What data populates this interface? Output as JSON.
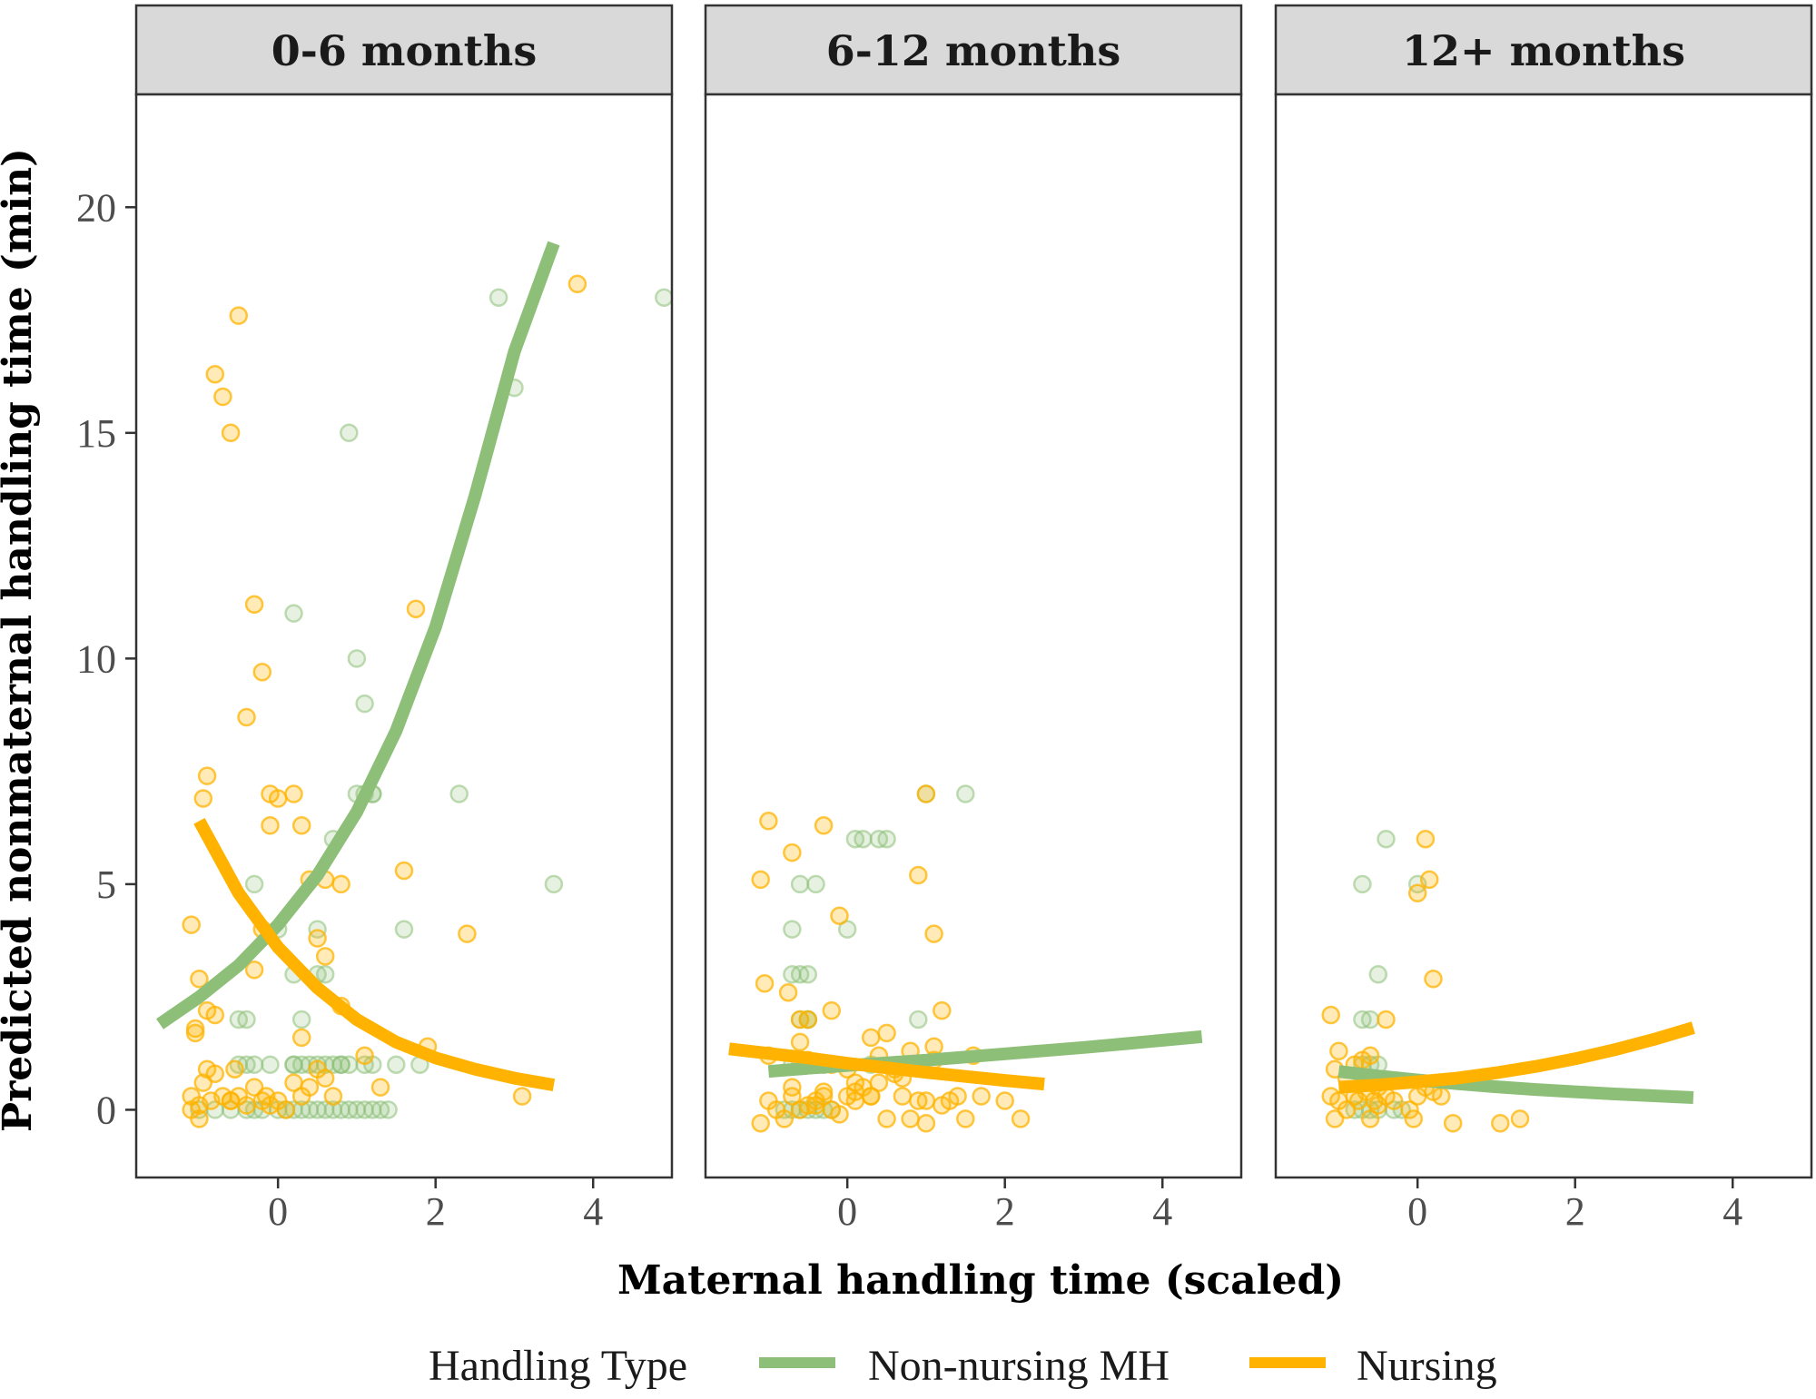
{
  "chart_data": {
    "type": "scatter",
    "title": "",
    "xlabel": "Maternal handling time (scaled)",
    "ylabel": "Predicted nonmaternal handling time (min)",
    "xlim": [
      -1.8,
      5.0
    ],
    "ylim": [
      -1.5,
      22.5
    ],
    "x_ticks": [
      0,
      2,
      4
    ],
    "y_ticks": [
      0,
      5,
      10,
      15,
      20
    ],
    "grid": false,
    "legend": {
      "title": "Handling Type",
      "placement": "bottom",
      "entries": [
        {
          "name": "Non-nursing MH",
          "color": "#8dbf78"
        },
        {
          "name": "Nursing",
          "color": "#ffb300"
        }
      ]
    },
    "colors": {
      "nonnursing": "#8dbf78",
      "nursing": "#ffb300"
    },
    "panels": [
      {
        "label": "0-6 months",
        "series": [
          {
            "name": "Non-nursing MH",
            "line": {
              "x": [
                -1.5,
                -1.0,
                -0.5,
                0.0,
                0.5,
                1.0,
                1.5,
                2.0,
                2.5,
                3.0,
                3.5
              ],
              "y": [
                1.9,
                2.5,
                3.2,
                4.1,
                5.2,
                6.6,
                8.4,
                10.7,
                13.6,
                16.8,
                19.2
              ]
            },
            "points": {
              "x": [
                -1.0,
                -0.8,
                -0.6,
                -0.4,
                -0.3,
                -0.2,
                0.0,
                0.1,
                0.2,
                0.3,
                0.4,
                0.5,
                0.6,
                0.7,
                0.8,
                0.9,
                1.0,
                1.1,
                1.2,
                1.3,
                1.4,
                -0.5,
                -0.4,
                -0.3,
                0.2,
                0.3,
                0.5,
                0.7,
                0.8,
                0.9,
                1.1,
                1.2,
                1.5,
                1.8,
                2.3,
                3.5,
                0.2,
                0.3,
                0.5,
                0.6,
                0.7,
                1.0,
                1.1,
                1.2,
                1.6,
                2.8,
                3.0,
                4.9,
                0.0,
                0.2,
                0.5,
                0.9,
                -0.5,
                -0.4,
                -0.1,
                0.2,
                0.4,
                0.6,
                0.8,
                1.0,
                1.1,
                1.2,
                -0.3
              ],
              "y": [
                0,
                0,
                0,
                0,
                0,
                0,
                0,
                0,
                0,
                0,
                0,
                0,
                0,
                0,
                0,
                0,
                0,
                0,
                0,
                0,
                0,
                1,
                1,
                1,
                1,
                1,
                1,
                1,
                1,
                1,
                1,
                1,
                1,
                1,
                7,
                5,
                3,
                2,
                3,
                3,
                6,
                7,
                7,
                7,
                4,
                18,
                16,
                18,
                4,
                11,
                4,
                15,
                2,
                2,
                1,
                1,
                1,
                1,
                1,
                10,
                9,
                7,
                5
              ]
            }
          },
          {
            "name": "Nursing",
            "line": {
              "x": [
                -1.0,
                -0.5,
                0.0,
                0.5,
                1.0,
                1.5,
                2.0,
                2.5,
                3.0,
                3.5
              ],
              "y": [
                6.4,
                4.8,
                3.6,
                2.7,
                2.0,
                1.5,
                1.15,
                0.9,
                0.7,
                0.55
              ]
            },
            "points": {
              "x": [
                -1.1,
                -1.0,
                -0.95,
                -0.9,
                -0.85,
                -0.8,
                -0.7,
                -0.6,
                -0.5,
                -0.4,
                -0.3,
                -0.2,
                -0.15,
                -0.1,
                0.0,
                0.1,
                0.2,
                0.3,
                0.4,
                0.5,
                0.6,
                0.7,
                -1.1,
                -1.05,
                -1.0,
                -0.95,
                -0.9,
                -0.8,
                -0.7,
                -0.6,
                -0.5,
                -0.4,
                -0.3,
                -0.2,
                -0.1,
                0.0,
                0.2,
                0.3,
                0.4,
                0.5,
                0.6,
                0.8,
                1.1,
                1.3,
                1.6,
                1.75,
                1.9,
                2.4,
                3.1,
                3.8,
                -1.0,
                -0.9,
                -0.8,
                -1.1,
                -0.6,
                -1.05,
                -0.55,
                -0.2,
                -0.3,
                -0.1,
                0.3,
                0.6,
                0.8
              ],
              "y": [
                0.3,
                0.1,
                0.6,
                0.9,
                0.2,
                0.8,
                0.3,
                0.2,
                0.3,
                0.1,
                0.5,
                0.2,
                0.3,
                0.1,
                0.2,
                0.0,
                0.6,
                0.3,
                0.5,
                0.9,
                0.7,
                0.3,
                4.1,
                1.7,
                2.9,
                6.9,
                7.4,
                16.3,
                15.8,
                15.0,
                17.6,
                8.7,
                11.2,
                9.7,
                7.0,
                6.9,
                7.0,
                6.3,
                5.1,
                3.8,
                3.4,
                2.3,
                1.2,
                0.5,
                5.3,
                11.1,
                1.4,
                3.9,
                0.3,
                18.3,
                -0.2,
                2.2,
                2.1,
                0.0,
                0.2,
                1.8,
                0.9,
                4.0,
                3.1,
                6.3,
                1.6,
                5.1,
                5.0
              ]
            }
          }
        ]
      },
      {
        "label": "6-12 months",
        "series": [
          {
            "name": "Non-nursing MH",
            "line": {
              "x": [
                -1.0,
                -0.5,
                0.0,
                0.5,
                1.0,
                1.5,
                2.0,
                2.5,
                3.0,
                3.5,
                4.0,
                4.5
              ],
              "y": [
                0.85,
                0.92,
                0.98,
                1.04,
                1.1,
                1.17,
                1.24,
                1.31,
                1.38,
                1.46,
                1.54,
                1.62
              ]
            },
            "points": {
              "x": [
                -0.8,
                -0.7,
                -0.6,
                -0.5,
                -0.4,
                -0.3,
                -0.2,
                -0.7,
                -0.6,
                -0.5,
                -0.4,
                -0.3,
                -0.6,
                -0.5,
                -0.7,
                -0.6,
                -0.5,
                -0.7,
                -0.6,
                -0.4,
                0.1,
                0.2,
                0.4,
                0.5,
                1.0,
                1.5,
                -0.5,
                0.0,
                0.3,
                0.9
              ],
              "y": [
                0,
                0,
                0,
                0,
                0,
                0,
                0,
                1,
                1,
                1,
                1,
                1,
                2,
                2,
                3,
                3,
                3,
                4,
                5,
                5,
                6,
                6,
                6,
                6,
                7,
                7,
                2,
                4,
                1,
                2
              ]
            }
          },
          {
            "name": "Nursing",
            "line": {
              "x": [
                -1.5,
                -1.0,
                -0.5,
                0.0,
                0.5,
                1.0,
                1.5,
                2.0,
                2.5
              ],
              "y": [
                1.35,
                1.25,
                1.15,
                1.03,
                0.93,
                0.83,
                0.74,
                0.65,
                0.57
              ]
            },
            "points": {
              "x": [
                -1.1,
                -1.0,
                -0.9,
                -0.8,
                -0.7,
                -0.6,
                -0.5,
                -0.4,
                -0.3,
                -0.2,
                -0.1,
                0.0,
                0.1,
                0.2,
                0.3,
                0.4,
                0.5,
                0.6,
                0.7,
                0.8,
                0.9,
                1.0,
                1.1,
                1.2,
                1.3,
                1.4,
                1.5,
                1.6,
                1.7,
                2.0,
                2.2,
                -1.1,
                -1.0,
                -0.7,
                -0.6,
                -0.5,
                -0.3,
                -0.2,
                -0.1,
                0.0,
                0.1,
                0.3,
                0.4,
                0.5,
                0.6,
                0.7,
                0.8,
                0.9,
                1.0,
                1.1,
                1.2,
                -1.05,
                -0.75,
                -0.4,
                -0.2,
                0.1,
                0.3,
                1.0,
                1.1,
                -1.0,
                -0.7,
                -0.6,
                -0.5,
                -0.3
              ],
              "y": [
                -0.3,
                0.2,
                0.0,
                -0.2,
                0.3,
                0.0,
                0.1,
                0.2,
                0.3,
                0.0,
                -0.1,
                0.3,
                0.2,
                0.5,
                0.3,
                0.6,
                -0.2,
                0.8,
                0.3,
                -0.2,
                0.2,
                -0.3,
                1.1,
                0.1,
                0.2,
                0.3,
                -0.2,
                1.2,
                0.3,
                0.2,
                -0.2,
                5.1,
                6.4,
                5.7,
                1.5,
                2.0,
                6.3,
                2.2,
                4.3,
                0.9,
                0.6,
                1.6,
                1.2,
                1.7,
                0.9,
                0.7,
                1.3,
                5.2,
                7.0,
                3.9,
                2.2,
                2.8,
                2.6,
                0.1,
                1.0,
                0.4,
                0.3,
                0.2,
                1.4,
                1.2,
                0.5,
                2.0,
                1.1,
                0.4
              ]
            }
          }
        ]
      },
      {
        "label": "12+ months",
        "series": [
          {
            "name": "Non-nursing MH",
            "line": {
              "x": [
                -1.0,
                -0.5,
                0.0,
                0.5,
                1.0,
                1.5,
                2.0,
                2.5,
                3.0,
                3.5
              ],
              "y": [
                0.85,
                0.75,
                0.66,
                0.58,
                0.51,
                0.45,
                0.4,
                0.35,
                0.31,
                0.27
              ]
            },
            "points": {
              "x": [
                -0.8,
                -0.7,
                -0.6,
                -0.5,
                -0.7,
                -0.6,
                -0.5,
                -0.7,
                -0.6,
                -0.5,
                -0.4,
                -0.7,
                -0.3,
                0.0,
                -0.2
              ],
              "y": [
                0,
                0,
                0,
                0,
                1,
                1,
                1,
                2,
                2,
                3,
                6,
                5,
                0,
                5,
                0
              ]
            }
          },
          {
            "name": "Nursing",
            "line": {
              "x": [
                -1.0,
                -0.5,
                0.0,
                0.5,
                1.0,
                1.5,
                2.0,
                2.5,
                3.0,
                3.5
              ],
              "y": [
                0.5,
                0.55,
                0.62,
                0.7,
                0.82,
                0.96,
                1.13,
                1.33,
                1.56,
                1.82
              ]
            },
            "points": {
              "x": [
                -1.1,
                -1.05,
                -1.0,
                -0.9,
                -0.8,
                -0.75,
                -0.7,
                -0.65,
                -0.6,
                -0.55,
                -0.5,
                -0.4,
                -0.3,
                -0.1,
                0.0,
                0.1,
                0.2,
                0.3,
                -1.1,
                -1.0,
                -0.8,
                -0.6,
                -0.4,
                0.45,
                1.05,
                1.3,
                -1.05,
                -0.9,
                -0.5,
                -0.05,
                0.0,
                0.1,
                0.15,
                0.2
              ],
              "y": [
                0.3,
                -0.2,
                0.2,
                0.0,
                0.3,
                0.2,
                1.1,
                0.4,
                -0.2,
                0.2,
                0.1,
                0.3,
                0.2,
                0.0,
                0.3,
                0.5,
                0.4,
                0.3,
                2.1,
                1.3,
                1.0,
                1.2,
                2.0,
                -0.3,
                -0.3,
                -0.2,
                0.9,
                0.7,
                0.5,
                -0.2,
                4.8,
                6.0,
                5.1,
                2.9
              ]
            }
          }
        ]
      }
    ]
  }
}
